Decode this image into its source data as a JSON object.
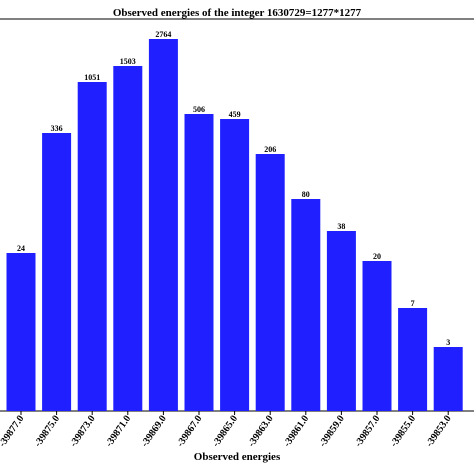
{
  "chart_data": {
    "type": "bar",
    "title": "Observed energies of the integer 1630729=1277*1277",
    "xlabel": "Observed energies",
    "ylabel": "",
    "categories": [
      "-39877.0",
      "-39875.0",
      "-39873.0",
      "-39871.0",
      "-39869.0",
      "-39867.0",
      "-39865.0",
      "-39863.0",
      "-39861.0",
      "-39859.0",
      "-39857.0",
      "-39855.0",
      "-39853.0"
    ],
    "values": [
      24,
      336,
      1051,
      1503,
      2764,
      506,
      459,
      206,
      80,
      38,
      20,
      7,
      3
    ],
    "data_labels": [
      "24",
      "336",
      "1051",
      "1503",
      "2764",
      "506",
      "459",
      "206",
      "80",
      "38",
      "20",
      "7",
      "3"
    ],
    "bar_color": "#1f1fff",
    "grid": false,
    "legend": "none"
  }
}
